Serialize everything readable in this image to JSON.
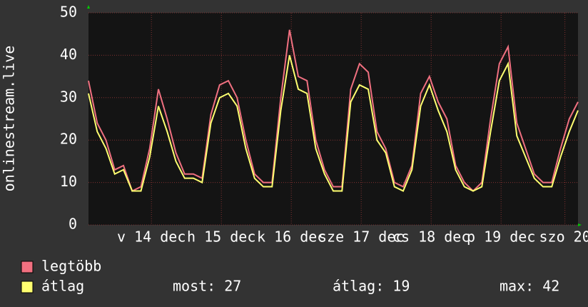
{
  "chart_data": {
    "type": "line",
    "y_label": "onlinestream.live",
    "x": [
      0,
      3,
      6,
      9,
      12,
      15,
      18,
      21,
      24,
      27,
      30,
      33,
      36,
      39,
      42,
      45,
      48,
      51,
      54,
      57,
      60,
      63,
      66,
      69,
      72,
      75,
      78,
      81,
      84,
      87,
      90,
      93,
      96,
      99,
      102,
      105,
      108,
      111,
      114,
      117,
      120,
      123,
      126,
      129,
      132,
      135,
      138,
      141,
      144,
      147,
      150,
      153,
      156,
      159,
      162,
      165,
      168
    ],
    "xlim": [
      0,
      168
    ],
    "xticks": [
      {
        "value": 21.6,
        "label": "v 14 dec"
      },
      {
        "value": 45.6,
        "label": "h 15 dec"
      },
      {
        "value": 69.6,
        "label": "k 16 dec"
      },
      {
        "value": 93.6,
        "label": "sze 17 dec"
      },
      {
        "value": 117.6,
        "label": "cs 18 dec"
      },
      {
        "value": 141.6,
        "label": "p 19 dec"
      },
      {
        "value": 163.5,
        "label": "szo 20"
      }
    ],
    "ylim": [
      0,
      50
    ],
    "yticks": [
      0,
      10,
      20,
      30,
      40,
      50
    ],
    "grid": true,
    "series": [
      {
        "name": "legtöbb",
        "color": "#f07080",
        "values": [
          34,
          24,
          20,
          13,
          14,
          8,
          9,
          18,
          32,
          25,
          17,
          12,
          12,
          11,
          26,
          33,
          34,
          30,
          20,
          12,
          10,
          10,
          30,
          46,
          35,
          34,
          20,
          13,
          9,
          9,
          32,
          38,
          36,
          22,
          18,
          10,
          9,
          14,
          31,
          35,
          29,
          25,
          14,
          10,
          8,
          10,
          25,
          38,
          42,
          24,
          18,
          12,
          10,
          10,
          18,
          25,
          29
        ]
      },
      {
        "name": "átlag",
        "color": "#ffff70",
        "values": [
          31,
          22,
          18,
          12,
          13,
          8,
          8,
          16,
          28,
          22,
          15,
          11,
          11,
          10,
          24,
          30,
          31,
          28,
          18,
          11,
          9,
          9,
          27,
          40,
          32,
          31,
          18,
          12,
          8,
          8,
          29,
          33,
          32,
          20,
          17,
          9,
          8,
          13,
          28,
          33,
          27,
          22,
          13,
          9,
          8,
          9,
          22,
          34,
          38,
          21,
          16,
          11,
          9,
          9,
          16,
          22,
          27
        ]
      }
    ],
    "stats": [
      "most: 27",
      "átlag: 19",
      "max: 42"
    ]
  }
}
